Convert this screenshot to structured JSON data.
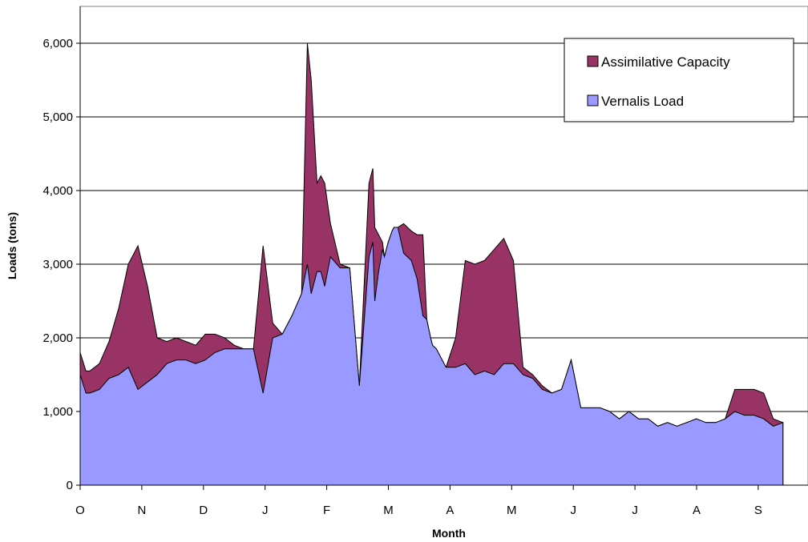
{
  "chart_data": {
    "type": "area",
    "stacked": true,
    "xlabel": "Month",
    "ylabel": "Loads (tons)",
    "ylim": [
      0,
      6500
    ],
    "yticks": [
      0,
      1000,
      2000,
      3000,
      4000,
      5000,
      6000
    ],
    "ytick_labels": [
      "0",
      "1,000",
      "2,000",
      "3,000",
      "4,000",
      "5,000",
      "6,000"
    ],
    "xtick_labels": [
      "O",
      "N",
      "D",
      "J",
      "F",
      "M",
      "A",
      "M",
      "J",
      "J",
      "A",
      "S"
    ],
    "grid": "horizontal",
    "legend_position": "top-right",
    "series": [
      {
        "name": "Vernalis Load",
        "color": "#9999ff",
        "x": [
          0,
          3,
          5,
          10,
          15,
          20,
          25,
          30,
          35,
          40,
          45,
          50,
          55,
          60,
          65,
          70,
          75,
          80,
          85,
          90,
          95,
          100,
          105,
          110,
          115,
          118,
          120,
          123,
          125,
          127,
          130,
          135,
          140,
          145,
          150,
          152,
          153,
          155,
          157,
          158,
          160,
          162,
          163,
          165,
          168,
          172,
          175,
          178,
          180,
          182,
          183,
          185,
          190,
          195,
          200,
          205,
          210,
          215,
          220,
          225,
          230,
          235,
          240,
          245,
          250,
          255,
          260,
          265,
          270,
          275,
          280,
          285,
          290,
          295,
          300,
          305,
          310,
          315,
          320,
          325,
          330,
          335,
          340,
          345,
          350,
          355,
          360,
          365
        ],
        "values": [
          1500,
          1250,
          1250,
          1300,
          1450,
          1500,
          1600,
          1300,
          1400,
          1500,
          1650,
          1700,
          1700,
          1650,
          1700,
          1800,
          1850,
          1850,
          1850,
          1850,
          1250,
          2000,
          2050,
          2300,
          2600,
          3000,
          2600,
          2900,
          2900,
          2700,
          3100,
          2950,
          2950,
          1350,
          3100,
          3300,
          2500,
          2900,
          3200,
          3100,
          3300,
          3450,
          3500,
          3500,
          3150,
          3050,
          2800,
          2300,
          2250,
          2000,
          1900,
          1850,
          1600,
          1600,
          1650,
          1500,
          1550,
          1500,
          1650,
          1650,
          1500,
          1450,
          1300,
          1250,
          1300,
          1700,
          1050,
          1050,
          1050,
          1000,
          900,
          1000,
          900,
          900,
          800,
          850,
          800,
          850,
          900,
          850,
          850,
          900,
          1000,
          950,
          950,
          900,
          800,
          850
        ]
      },
      {
        "name": "Assimilative Capacity",
        "color": "#993366",
        "x": [
          0,
          3,
          5,
          10,
          15,
          20,
          25,
          30,
          35,
          40,
          45,
          50,
          55,
          60,
          65,
          70,
          75,
          80,
          85,
          90,
          95,
          100,
          105,
          110,
          115,
          118,
          120,
          123,
          125,
          127,
          130,
          135,
          140,
          145,
          150,
          152,
          153,
          155,
          157,
          158,
          160,
          162,
          163,
          165,
          168,
          172,
          175,
          178,
          180,
          182,
          183,
          185,
          190,
          195,
          200,
          205,
          210,
          215,
          220,
          225,
          230,
          235,
          240,
          245,
          250,
          255,
          260,
          265,
          270,
          275,
          280,
          285,
          290,
          295,
          300,
          305,
          310,
          315,
          320,
          325,
          330,
          335,
          340,
          345,
          350,
          355,
          360,
          365
        ],
        "values": [
          300,
          300,
          300,
          350,
          500,
          900,
          1400,
          1950,
          1300,
          500,
          300,
          300,
          250,
          250,
          350,
          250,
          150,
          50,
          0,
          0,
          2000,
          200,
          0,
          0,
          0,
          3000,
          2900,
          1200,
          1300,
          1400,
          450,
          50,
          0,
          0,
          1000,
          1000,
          1000,
          500,
          100,
          0,
          0,
          0,
          0,
          0,
          400,
          400,
          600,
          1100,
          0,
          0,
          0,
          0,
          0,
          400,
          1400,
          1500,
          1500,
          1700,
          1700,
          1400,
          100,
          50,
          50,
          0,
          0,
          0,
          0,
          0,
          0,
          0,
          0,
          0,
          0,
          0,
          0,
          0,
          0,
          0,
          0,
          0,
          0,
          0,
          300,
          350,
          350,
          350,
          100,
          0
        ]
      }
    ]
  }
}
